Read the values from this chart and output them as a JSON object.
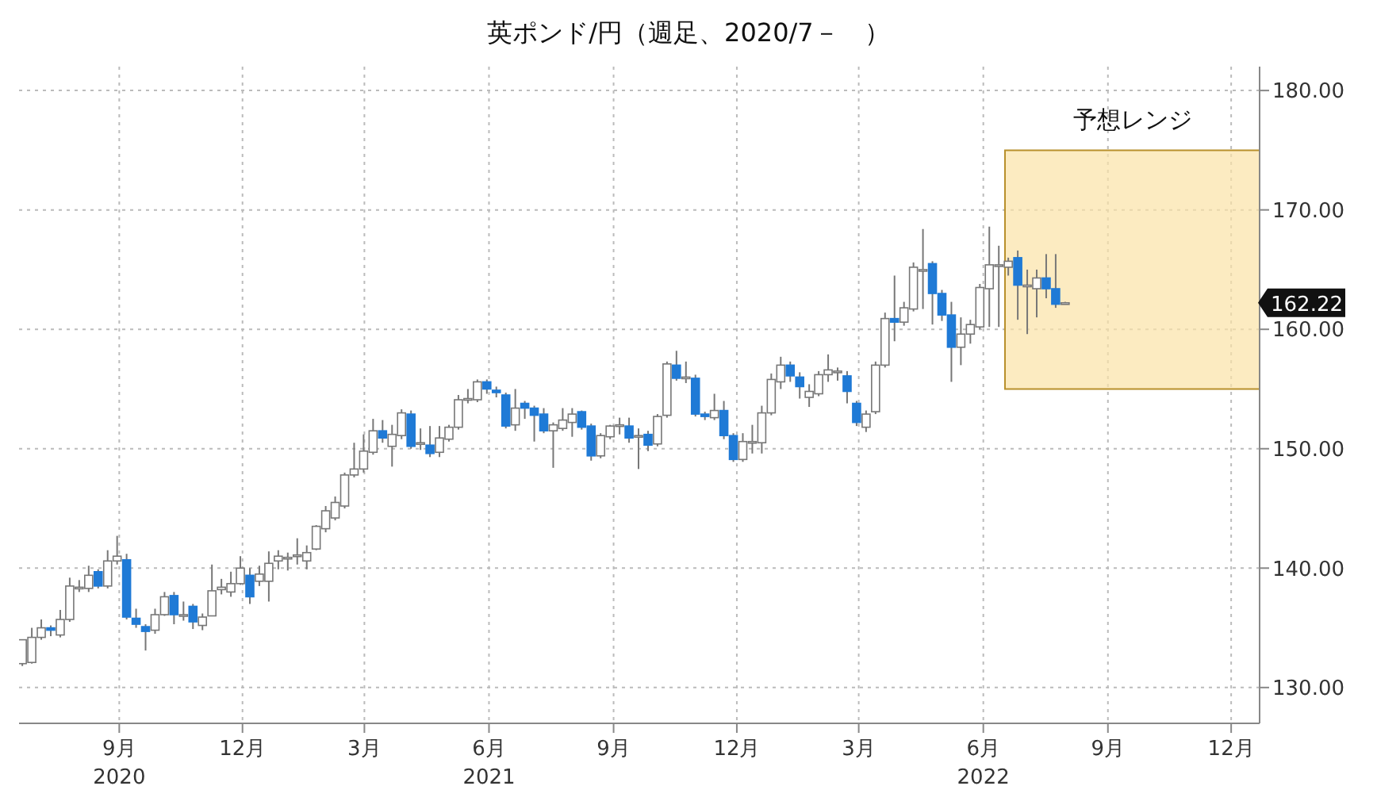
{
  "chart_data": {
    "type": "candlestick",
    "title": "英ポンド/円（週足、2020/7－　）",
    "x": [
      "2020-06-22",
      "2020-06-29",
      "2020-07-06",
      "2020-07-13",
      "2020-07-20",
      "2020-07-27",
      "2020-08-03",
      "2020-08-10",
      "2020-08-17",
      "2020-08-24",
      "2020-08-31",
      "2020-09-07",
      "2020-09-14",
      "2020-09-21",
      "2020-09-28",
      "2020-10-05",
      "2020-10-12",
      "2020-10-19",
      "2020-10-26",
      "2020-11-02",
      "2020-11-09",
      "2020-11-16",
      "2020-11-23",
      "2020-11-30",
      "2020-12-07",
      "2020-12-14",
      "2020-12-21",
      "2020-12-28",
      "2021-01-04",
      "2021-01-11",
      "2021-01-18",
      "2021-01-25",
      "2021-02-01",
      "2021-02-08",
      "2021-02-15",
      "2021-02-22",
      "2021-03-01",
      "2021-03-08",
      "2021-03-15",
      "2021-03-22",
      "2021-03-29",
      "2021-04-05",
      "2021-04-12",
      "2021-04-19",
      "2021-04-26",
      "2021-05-03",
      "2021-05-10",
      "2021-05-17",
      "2021-05-24",
      "2021-05-31",
      "2021-06-07",
      "2021-06-14",
      "2021-06-21",
      "2021-06-28",
      "2021-07-05",
      "2021-07-12",
      "2021-07-19",
      "2021-07-26",
      "2021-08-02",
      "2021-08-09",
      "2021-08-16",
      "2021-08-23",
      "2021-08-30",
      "2021-09-06",
      "2021-09-13",
      "2021-09-20",
      "2021-09-27",
      "2021-10-04",
      "2021-10-11",
      "2021-10-18",
      "2021-10-25",
      "2021-11-01",
      "2021-11-08",
      "2021-11-15",
      "2021-11-22",
      "2021-11-29",
      "2021-12-06",
      "2021-12-13",
      "2021-12-20",
      "2021-12-27",
      "2022-01-03",
      "2022-01-10",
      "2022-01-17",
      "2022-01-24",
      "2022-01-31",
      "2022-02-07",
      "2022-02-14",
      "2022-02-21",
      "2022-02-28",
      "2022-03-07",
      "2022-03-14",
      "2022-03-21",
      "2022-03-28",
      "2022-04-04",
      "2022-04-11",
      "2022-04-18",
      "2022-04-25",
      "2022-05-02",
      "2022-05-09",
      "2022-05-16",
      "2022-05-23",
      "2022-05-30",
      "2022-06-06",
      "2022-06-13",
      "2022-06-20",
      "2022-06-27",
      "2022-07-04",
      "2022-07-11",
      "2022-07-18",
      "2022-07-25",
      "2022-08-01"
    ],
    "ohlc": [
      [
        132.0,
        134.0,
        131.8,
        134.0
      ],
      [
        132.1,
        135.0,
        132.0,
        134.2
      ],
      [
        134.2,
        135.7,
        134.0,
        135.0
      ],
      [
        135.0,
        135.2,
        134.3,
        134.8
      ],
      [
        134.4,
        136.5,
        134.2,
        135.7
      ],
      [
        135.7,
        139.2,
        135.5,
        138.5
      ],
      [
        138.3,
        139.0,
        138.0,
        138.4
      ],
      [
        138.3,
        140.2,
        138.0,
        139.4
      ],
      [
        139.7,
        139.9,
        138.3,
        138.5
      ],
      [
        138.5,
        141.5,
        138.3,
        140.6
      ],
      [
        140.6,
        142.7,
        140.3,
        141.0
      ],
      [
        140.7,
        141.2,
        135.7,
        135.9
      ],
      [
        135.8,
        136.6,
        135.0,
        135.3
      ],
      [
        135.1,
        135.3,
        133.1,
        134.7
      ],
      [
        134.8,
        136.6,
        134.5,
        136.1
      ],
      [
        136.1,
        138.0,
        136.0,
        137.6
      ],
      [
        137.7,
        138.0,
        135.3,
        136.1
      ],
      [
        136.0,
        137.2,
        135.6,
        136.1
      ],
      [
        136.8,
        137.0,
        134.9,
        135.5
      ],
      [
        135.2,
        136.2,
        134.8,
        135.9
      ],
      [
        136.0,
        140.3,
        136.0,
        138.1
      ],
      [
        138.2,
        139.1,
        137.8,
        138.4
      ],
      [
        138.0,
        139.7,
        137.6,
        138.7
      ],
      [
        138.7,
        141.0,
        138.6,
        140.0
      ],
      [
        139.4,
        140.0,
        137.0,
        137.6
      ],
      [
        138.9,
        140.2,
        138.5,
        139.5
      ],
      [
        138.9,
        141.4,
        137.2,
        140.4
      ],
      [
        140.6,
        141.5,
        139.9,
        141.0
      ],
      [
        140.8,
        141.3,
        139.8,
        140.9
      ],
      [
        141.0,
        142.5,
        140.3,
        141.1
      ],
      [
        140.6,
        141.9,
        139.9,
        141.3
      ],
      [
        141.6,
        143.6,
        141.5,
        143.5
      ],
      [
        143.3,
        145.2,
        143.0,
        144.8
      ],
      [
        144.2,
        146.0,
        144.0,
        145.5
      ],
      [
        145.2,
        148.0,
        145.0,
        147.8
      ],
      [
        147.8,
        150.5,
        147.6,
        148.3
      ],
      [
        148.3,
        151.2,
        148.0,
        149.8
      ],
      [
        149.7,
        152.5,
        149.5,
        151.5
      ],
      [
        151.5,
        152.4,
        150.5,
        150.9
      ],
      [
        150.2,
        152.0,
        148.5,
        151.2
      ],
      [
        151.1,
        153.3,
        150.8,
        153.0
      ],
      [
        152.9,
        153.2,
        150.0,
        150.2
      ],
      [
        150.4,
        151.7,
        149.9,
        150.5
      ],
      [
        150.3,
        151.9,
        149.3,
        149.6
      ],
      [
        149.7,
        151.9,
        149.3,
        150.9
      ],
      [
        150.8,
        152.0,
        150.6,
        151.8
      ],
      [
        151.8,
        154.5,
        151.6,
        154.1
      ],
      [
        154.1,
        155.0,
        153.8,
        154.2
      ],
      [
        154.1,
        155.8,
        153.9,
        155.6
      ],
      [
        155.6,
        155.8,
        154.6,
        155.0
      ],
      [
        154.9,
        155.2,
        154.3,
        154.7
      ],
      [
        154.5,
        154.7,
        151.7,
        151.9
      ],
      [
        152.0,
        155.0,
        151.5,
        153.4
      ],
      [
        153.8,
        154.0,
        152.5,
        153.4
      ],
      [
        153.4,
        153.6,
        150.6,
        152.8
      ],
      [
        152.9,
        153.4,
        151.3,
        151.5
      ],
      [
        151.5,
        152.2,
        148.4,
        152.0
      ],
      [
        151.7,
        153.4,
        151.5,
        152.4
      ],
      [
        152.2,
        153.4,
        151.0,
        152.9
      ],
      [
        153.1,
        153.2,
        151.6,
        151.8
      ],
      [
        151.9,
        152.1,
        149.0,
        149.4
      ],
      [
        149.4,
        151.3,
        149.2,
        151.1
      ],
      [
        151.0,
        152.0,
        150.8,
        151.9
      ],
      [
        152.0,
        152.6,
        151.2,
        152.0
      ],
      [
        151.9,
        152.6,
        150.5,
        150.9
      ],
      [
        151.0,
        151.7,
        148.3,
        151.1
      ],
      [
        151.2,
        151.5,
        149.8,
        150.3
      ],
      [
        150.4,
        152.9,
        150.2,
        152.7
      ],
      [
        152.8,
        157.3,
        152.6,
        157.1
      ],
      [
        157.0,
        158.2,
        155.7,
        155.9
      ],
      [
        156.0,
        157.3,
        155.5,
        156.0
      ],
      [
        155.9,
        156.2,
        152.7,
        152.9
      ],
      [
        152.9,
        153.1,
        152.4,
        152.7
      ],
      [
        152.6,
        154.6,
        152.4,
        153.2
      ],
      [
        153.2,
        154.0,
        150.8,
        151.1
      ],
      [
        151.1,
        151.3,
        148.9,
        149.1
      ],
      [
        149.1,
        151.3,
        148.9,
        150.6
      ],
      [
        150.5,
        152.0,
        149.6,
        150.6
      ],
      [
        150.5,
        153.6,
        149.6,
        153.0
      ],
      [
        153.0,
        156.3,
        152.8,
        155.8
      ],
      [
        155.6,
        157.7,
        155.0,
        157.0
      ],
      [
        157.0,
        157.3,
        155.6,
        156.1
      ],
      [
        156.0,
        156.4,
        154.2,
        155.2
      ],
      [
        154.3,
        155.4,
        153.5,
        154.8
      ],
      [
        154.6,
        156.5,
        154.4,
        156.2
      ],
      [
        156.2,
        157.9,
        155.6,
        156.6
      ],
      [
        156.5,
        156.8,
        155.7,
        156.5
      ],
      [
        156.1,
        156.5,
        153.8,
        154.8
      ],
      [
        153.8,
        154.0,
        151.9,
        152.2
      ],
      [
        151.8,
        153.2,
        151.4,
        152.9
      ],
      [
        153.1,
        157.3,
        152.9,
        157.0
      ],
      [
        157.0,
        161.4,
        156.8,
        160.9
      ],
      [
        160.9,
        164.5,
        159.0,
        160.6
      ],
      [
        160.6,
        162.3,
        160.3,
        161.8
      ],
      [
        161.7,
        165.6,
        161.5,
        165.2
      ],
      [
        165.0,
        168.4,
        161.7,
        165.0
      ],
      [
        165.5,
        165.7,
        160.4,
        163.0
      ],
      [
        163.0,
        163.3,
        160.7,
        161.2
      ],
      [
        161.2,
        162.3,
        155.6,
        158.5
      ],
      [
        158.5,
        161.0,
        157.0,
        159.6
      ],
      [
        159.6,
        160.8,
        158.8,
        160.4
      ],
      [
        160.2,
        163.8,
        160.0,
        163.5
      ],
      [
        163.4,
        168.6,
        160.2,
        165.4
      ],
      [
        165.3,
        167.0,
        160.2,
        165.4
      ],
      [
        165.2,
        166.0,
        164.5,
        165.7
      ],
      [
        166.0,
        166.6,
        160.8,
        163.7
      ],
      [
        163.7,
        165.0,
        159.6,
        163.7
      ],
      [
        163.4,
        165.0,
        161.0,
        164.3
      ],
      [
        164.3,
        166.3,
        162.6,
        163.4
      ],
      [
        163.4,
        166.3,
        161.8,
        162.1
      ],
      [
        162.2,
        162.3,
        162.1,
        162.22
      ]
    ],
    "xlim": [
      "2020-06-19",
      "2022-12-22"
    ],
    "xticks": [
      {
        "value": "2020-09-01",
        "label": "9月\n2020"
      },
      {
        "value": "2020-12-01",
        "label": "12月"
      },
      {
        "value": "2021-03-01",
        "label": "3月"
      },
      {
        "value": "2021-06-01",
        "label": "6月\n2021"
      },
      {
        "value": "2021-09-01",
        "label": "9月"
      },
      {
        "value": "2021-12-01",
        "label": "12月"
      },
      {
        "value": "2022-03-01",
        "label": "3月"
      },
      {
        "value": "2022-06-01",
        "label": "6月\n2022"
      },
      {
        "value": "2022-09-01",
        "label": "9月"
      },
      {
        "value": "2022-12-01",
        "label": "12月"
      }
    ],
    "ylim": [
      127,
      182
    ],
    "yticks": [
      {
        "value": 130,
        "label": "130.00"
      },
      {
        "value": 140,
        "label": "140.00"
      },
      {
        "value": 150,
        "label": "150.00"
      },
      {
        "value": 160,
        "label": "160.00"
      },
      {
        "value": 170,
        "label": "170.00"
      },
      {
        "value": 180,
        "label": "180.00"
      }
    ],
    "bands": [
      {
        "axis": "y",
        "from": 155,
        "to": 175,
        "label": "予想レンジ",
        "color": "#fbe3a6"
      }
    ],
    "annotations": [
      "162.22"
    ],
    "grid": true
  }
}
